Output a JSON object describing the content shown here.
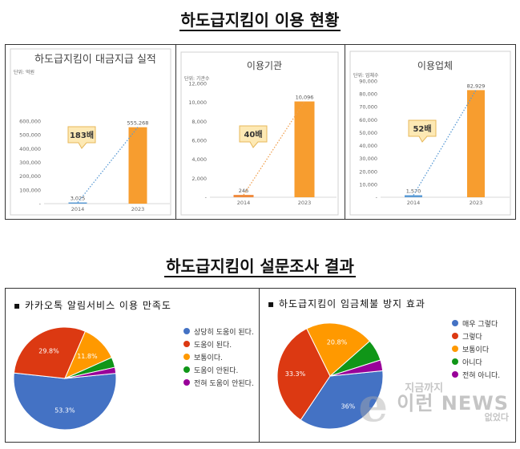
{
  "headings": {
    "top": "하도급지킴이 이용 현황",
    "bottom": "하도급지킴이 설문조사 결과"
  },
  "colors": {
    "bar_2014": "#5b9bd5",
    "bar_2023": "#f79d2f",
    "callout_fill": "#fde9b4",
    "trend_blue": "#5b9bd5",
    "trend_orange": "#f0a050"
  },
  "chart_data": [
    {
      "type": "bar",
      "title": "하도급지킴이 대금지급 실적",
      "unit_label": "단위: 억원",
      "categories": [
        "2014",
        "2023"
      ],
      "values": [
        3025,
        555268
      ],
      "value_labels": [
        "3,025",
        "555,268"
      ],
      "ylim": [
        0,
        600000
      ],
      "yticks": [
        "-",
        "100,000",
        "200,000",
        "300,000",
        "400,000",
        "500,000",
        "600,000"
      ],
      "annotation": "183배",
      "bar_colors": [
        "#5b9bd5",
        "#f79d2f"
      ],
      "trend_color": "#5b9bd5"
    },
    {
      "type": "bar",
      "title": "이용기관",
      "unit_label": "단위: 기관수",
      "categories": [
        "2014",
        "2023"
      ],
      "values": [
        246,
        10096
      ],
      "value_labels": [
        "246",
        "10,096"
      ],
      "ylim": [
        0,
        12000
      ],
      "yticks": [
        "-",
        "2,000",
        "4,000",
        "6,000",
        "8,000",
        "10,000",
        "12,000"
      ],
      "annotation": "40배",
      "bar_colors": [
        "#f08a3c",
        "#f79d2f"
      ],
      "trend_color": "#f0a050"
    },
    {
      "type": "bar",
      "title": "이용업체",
      "unit_label": "단위: 업체수",
      "categories": [
        "2014",
        "2023"
      ],
      "values": [
        1570,
        82929
      ],
      "value_labels": [
        "1,570",
        "82,929"
      ],
      "ylim": [
        0,
        90000
      ],
      "yticks": [
        "-",
        "10,000",
        "20,000",
        "30,000",
        "40,000",
        "50,000",
        "60,000",
        "70,000",
        "80,000",
        "90,000"
      ],
      "annotation": "52배",
      "bar_colors": [
        "#5b9bd5",
        "#f79d2f"
      ],
      "trend_color": "#5b9bd5"
    },
    {
      "type": "pie",
      "title": "▪  카카오톡 알림서비스 이용 만족도",
      "labels": [
        "상당히 도움이 된다.",
        "도움이 된다.",
        "보통이다.",
        "도움이 안된다.",
        "전혀 도움이 안된다."
      ],
      "values": [
        53.3,
        29.8,
        11.8,
        3.2,
        1.9
      ],
      "value_labels": [
        "53.3%",
        "29.8%",
        "11.8%",
        "",
        ""
      ],
      "colors": [
        "#4472c4",
        "#dc3912",
        "#ff9900",
        "#109618",
        "#990099"
      ]
    },
    {
      "type": "pie",
      "title": "▪  하도급지킴이 임금체불 방지 효과",
      "labels": [
        "매우 그렇다",
        "그렇다",
        "보통이다",
        "아니다",
        "전혀 아니다."
      ],
      "values": [
        36,
        33.3,
        20.8,
        6.6,
        3.3
      ],
      "value_labels": [
        "36%",
        "33.3%",
        "20.8%",
        "",
        ""
      ],
      "colors": [
        "#4472c4",
        "#dc3912",
        "#ff9900",
        "#109618",
        "#990099"
      ]
    }
  ],
  "watermark": {
    "top": "지금까지",
    "mid": "이런 NEWS",
    "bot": "없었다"
  }
}
